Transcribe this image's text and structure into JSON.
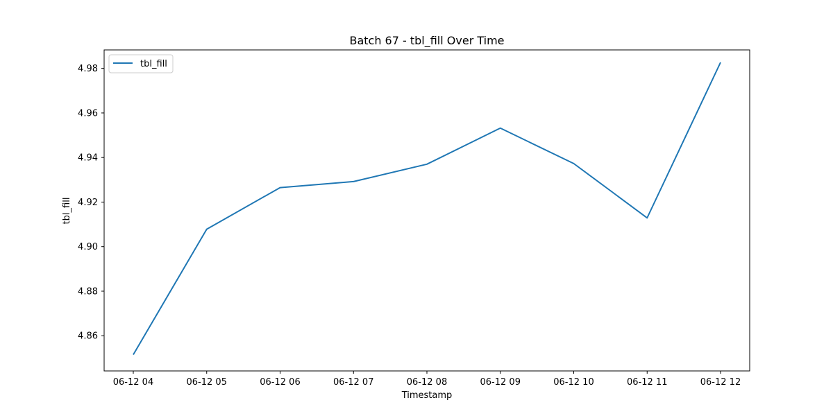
{
  "chart_data": {
    "type": "line",
    "title": "Batch 67 - tbl_fill Over Time",
    "xlabel": "Timestamp",
    "ylabel": "tbl_fill",
    "x": [
      "06-12 04",
      "06-12 05",
      "06-12 06",
      "06-12 07",
      "06-12 08",
      "06-12 09",
      "06-12 10",
      "06-12 11",
      "06-12 12"
    ],
    "series": [
      {
        "name": "tbl_fill",
        "values": [
          4.8515,
          4.9078,
          4.9265,
          4.9292,
          4.937,
          4.9532,
          4.9373,
          4.9129,
          4.9827
        ],
        "color": "#1f77b4"
      }
    ],
    "ylim": [
      4.8442,
      4.9883
    ],
    "yticks": [
      "4.86",
      "4.88",
      "4.90",
      "4.92",
      "4.94",
      "4.96",
      "4.98"
    ],
    "ytick_values": [
      4.86,
      4.88,
      4.9,
      4.92,
      4.94,
      4.96,
      4.98
    ],
    "legend": "upper-left",
    "grid": false
  }
}
